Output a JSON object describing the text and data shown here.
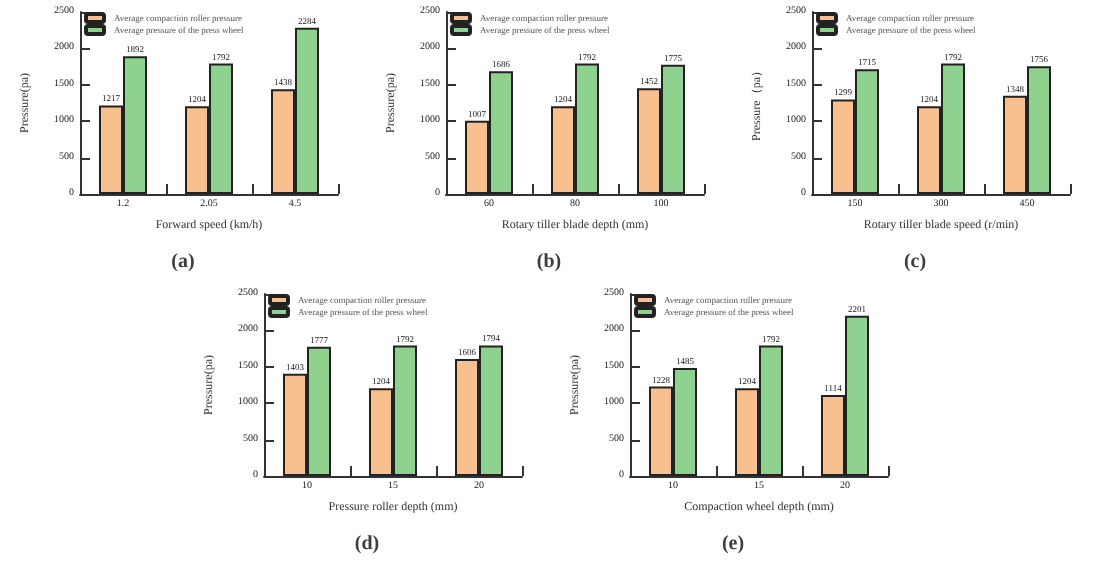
{
  "chart_data": [
    {
      "type": "bar",
      "title": "(a)",
      "xlabel": "Forward speed (km/h)",
      "ylabel": "Pressure(pa)",
      "categories": [
        "1.2",
        "2.05",
        "4.5"
      ],
      "series": [
        {
          "name": "Average compaction roller pressure",
          "color": "#f9c08f",
          "values": [
            1217,
            1204,
            1438
          ]
        },
        {
          "name": "Average pressure of the press wheel",
          "color": "#8fd18f",
          "values": [
            1892,
            1792,
            2284
          ]
        }
      ],
      "ylim": [
        0,
        2500
      ],
      "yticks": [
        0,
        500,
        1000,
        1500,
        2000,
        2500
      ],
      "legend": "top left",
      "data_labels": true,
      "grid": false
    },
    {
      "type": "bar",
      "title": "(b)",
      "xlabel": "Rotary tiller blade depth (mm)",
      "ylabel": "Pressure(pa)",
      "categories": [
        "60",
        "80",
        "100"
      ],
      "series": [
        {
          "name": "Average compaction roller pressure",
          "color": "#f9c08f",
          "values": [
            1007,
            1204,
            1452
          ]
        },
        {
          "name": "Average pressure of the press wheel",
          "color": "#8fd18f",
          "values": [
            1686,
            1792,
            1775
          ]
        }
      ],
      "ylim": [
        0,
        2500
      ],
      "yticks": [
        0,
        500,
        1000,
        1500,
        2000,
        2500
      ],
      "legend": "top left",
      "data_labels": true,
      "grid": false
    },
    {
      "type": "bar",
      "title": "(c)",
      "xlabel": "Rotary tiller blade speed (r/min)",
      "ylabel": "Pressure（pa）",
      "categories": [
        "150",
        "300",
        "450"
      ],
      "series": [
        {
          "name": "Average compaction roller pressure",
          "color": "#f9c08f",
          "values": [
            1299,
            1204,
            1348
          ]
        },
        {
          "name": "Average pressure of the press wheel",
          "color": "#8fd18f",
          "values": [
            1715,
            1792,
            1756
          ]
        }
      ],
      "ylim": [
        0,
        2500
      ],
      "yticks": [
        0,
        500,
        1000,
        1500,
        2000,
        2500
      ],
      "legend": "top left",
      "data_labels": true,
      "grid": false
    },
    {
      "type": "bar",
      "title": "(d)",
      "xlabel": "Pressure roller depth (mm)",
      "ylabel": "Pressure(pa)",
      "categories": [
        "10",
        "15",
        "20"
      ],
      "series": [
        {
          "name": "Average compaction roller pressure",
          "color": "#f9c08f",
          "values": [
            1403,
            1204,
            1606
          ]
        },
        {
          "name": "Average pressure of the press wheel",
          "color": "#8fd18f",
          "values": [
            1777,
            1792,
            1794
          ]
        }
      ],
      "ylim": [
        0,
        2500
      ],
      "yticks": [
        0,
        500,
        1000,
        1500,
        2000,
        2500
      ],
      "legend": "top left",
      "data_labels": true,
      "grid": false
    },
    {
      "type": "bar",
      "title": "(e)",
      "xlabel": "Compaction wheel depth (mm)",
      "ylabel": "Pressure(pa)",
      "categories": [
        "10",
        "15",
        "20"
      ],
      "series": [
        {
          "name": "Average compaction roller pressure",
          "color": "#f9c08f",
          "values": [
            1228,
            1204,
            1114
          ]
        },
        {
          "name": "Average pressure of the press wheel",
          "color": "#8fd18f",
          "values": [
            1485,
            1792,
            2201
          ]
        }
      ],
      "ylim": [
        0,
        2500
      ],
      "yticks": [
        0,
        500,
        1000,
        1500,
        2000,
        2500
      ],
      "legend": "top left",
      "data_labels": true,
      "grid": false
    }
  ]
}
